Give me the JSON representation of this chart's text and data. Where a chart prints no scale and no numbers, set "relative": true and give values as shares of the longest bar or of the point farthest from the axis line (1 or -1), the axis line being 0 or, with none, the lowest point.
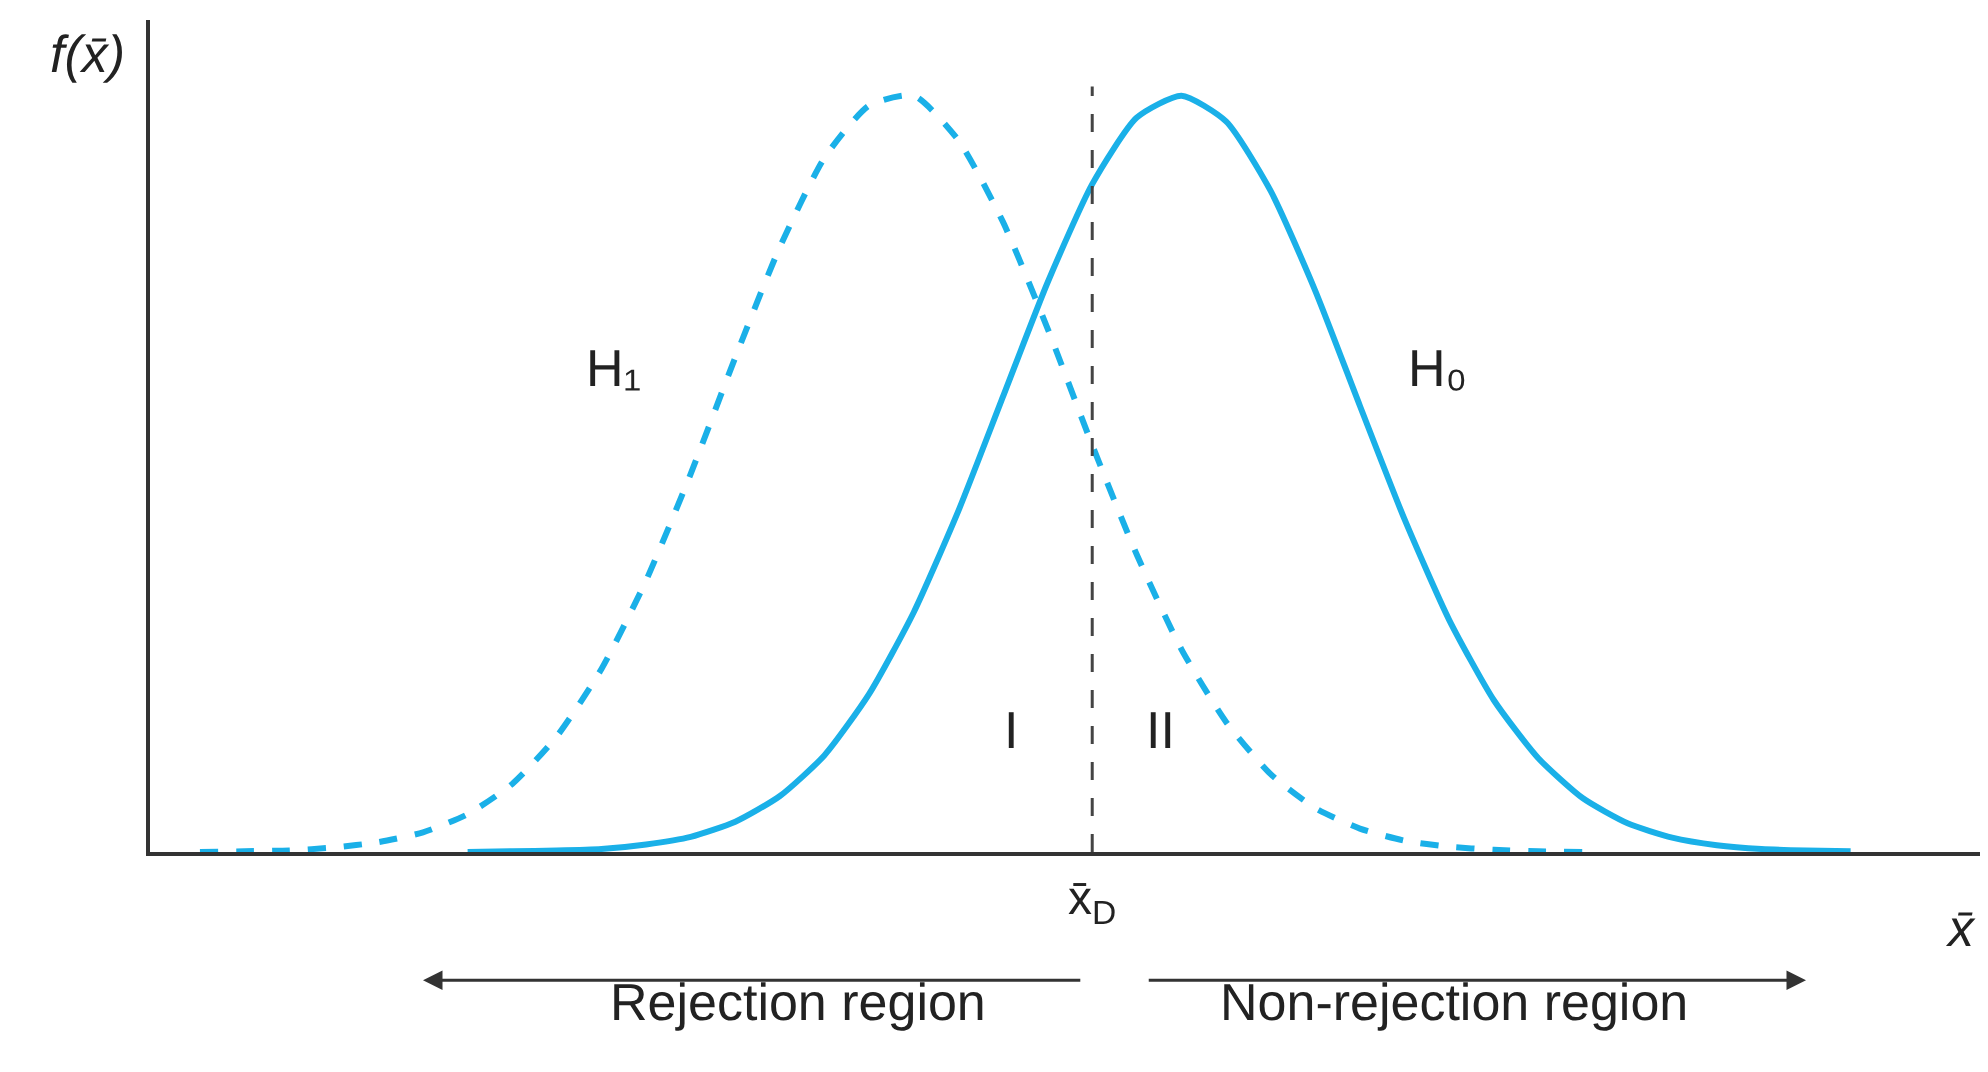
{
  "chart_data": {
    "type": "line",
    "relative": true,
    "xlabel": "x̄",
    "ylabel": "f(x̄)",
    "legend": false,
    "marker": "none",
    "categories": [
      null,
      null,
      null,
      null,
      null,
      null,
      null,
      null,
      null,
      null,
      null,
      null,
      null,
      null,
      null,
      null,
      null,
      null,
      null,
      null,
      null,
      null,
      null,
      null,
      null,
      null,
      null,
      null,
      null,
      null,
      null,
      null,
      null,
      null,
      null,
      null,
      null,
      null,
      null
    ],
    "series": [
      {
        "name": "H₁",
        "color": "#1ab0e8",
        "line_style": "dashed",
        "values": [
          0,
          0.001,
          0.002,
          0.006,
          0.013,
          0.026,
          0.05,
          0.09,
          0.153,
          0.242,
          0.359,
          0.5,
          0.654,
          0.8,
          0.918,
          0.987,
          1,
          0.941,
          0.833,
          0.692,
          0.538,
          0.393,
          0.268,
          0.172,
          0.103,
          0.058,
          0.031,
          0.015,
          0.007,
          0.003,
          0.001,
          0,
          null,
          null,
          null,
          null,
          null,
          null,
          null
        ]
      },
      {
        "name": "H₀",
        "color": "#1ab0e8",
        "line_style": "solid",
        "values": [
          null,
          null,
          null,
          null,
          null,
          null,
          0,
          0.001,
          0.002,
          0.004,
          0.01,
          0.02,
          0.04,
          0.074,
          0.128,
          0.209,
          0.317,
          0.451,
          0.602,
          0.753,
          0.883,
          0.971,
          1,
          0.966,
          0.874,
          0.742,
          0.59,
          0.44,
          0.307,
          0.201,
          0.124,
          0.071,
          0.038,
          0.019,
          0.009,
          0.004,
          0.002,
          0.001,
          null
        ]
      }
    ],
    "annotations": [
      "I",
      "II",
      "Rejection region",
      "Non-rejection region",
      "x̄$_{D}$"
    ]
  }
}
